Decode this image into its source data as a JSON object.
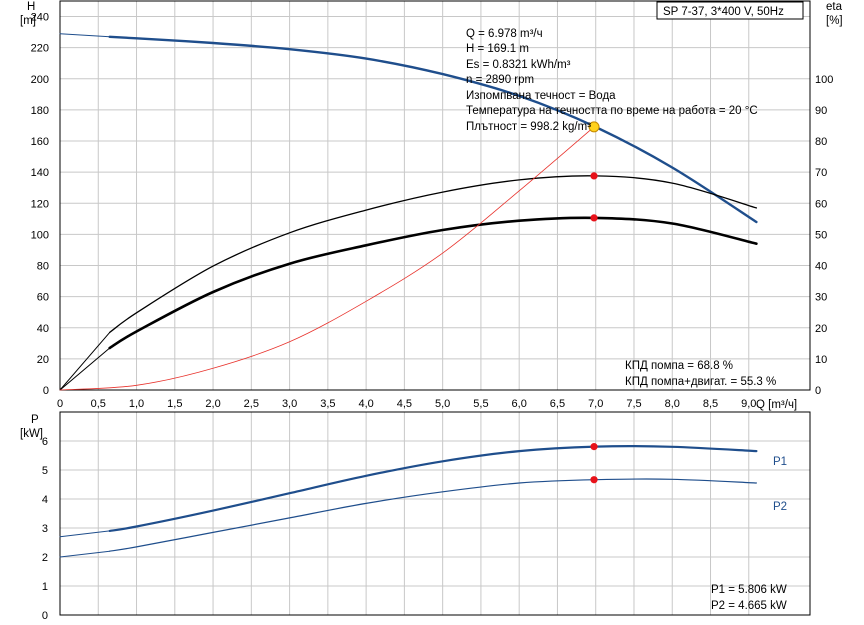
{
  "title": "SP 7-37, 3*400 V, 50Hz",
  "chart_data": [
    {
      "type": "line",
      "name": "head-efficiency",
      "xlabel": "Q [m³/ч]",
      "ylabel": "H",
      "ylabel_unit": "[m]",
      "y2label": "eta",
      "y2label_unit": "[%]",
      "xlim": [
        0,
        9.8
      ],
      "ylim": [
        0,
        250
      ],
      "y2lim": [
        0,
        125
      ],
      "x_ticks": [
        "0",
        "0,5",
        "1,0",
        "1,5",
        "2,0",
        "2,5",
        "3,0",
        "3,5",
        "4,0",
        "4,5",
        "5,0",
        "5,5",
        "6,0",
        "6,5",
        "7,0",
        "7,5",
        "8,0",
        "8,5",
        "9,0"
      ],
      "x_tick_values": [
        0,
        0.5,
        1.0,
        1.5,
        2.0,
        2.5,
        3.0,
        3.5,
        4.0,
        4.5,
        5.0,
        5.5,
        6.0,
        6.5,
        7.0,
        7.5,
        8.0,
        8.5,
        9.0
      ],
      "y_ticks": [
        0,
        20,
        40,
        60,
        80,
        100,
        120,
        140,
        160,
        180,
        200,
        220,
        240
      ],
      "y2_ticks": [
        0,
        10,
        20,
        30,
        40,
        50,
        60,
        70,
        80,
        90,
        100
      ],
      "grid": true,
      "series": [
        {
          "key": "H",
          "axis": "left",
          "color": "#1f4e8c",
          "width": 2.4,
          "x": [
            0.65,
            1.0,
            2.0,
            3.0,
            4.0,
            5.0,
            6.0,
            7.0,
            8.0,
            9.1
          ],
          "y": [
            227,
            226,
            223,
            219,
            213,
            203,
            189,
            169,
            143,
            108
          ]
        },
        {
          "key": "H-extrapolated",
          "axis": "left",
          "color": "#1f4e8c",
          "width": 1,
          "x": [
            0,
            0.65
          ],
          "y": [
            229,
            227
          ]
        },
        {
          "key": "eta-pump",
          "axis": "right",
          "color": "#000000",
          "width": 1.3,
          "x": [
            0.65,
            1.0,
            2.0,
            3.0,
            4.0,
            5.0,
            6.0,
            7.0,
            8.0,
            9.1
          ],
          "y": [
            18.5,
            24.8,
            39.8,
            50.5,
            57.8,
            63.6,
            67.5,
            68.8,
            66.5,
            58.5
          ]
        },
        {
          "key": "eta-pump-extrapolated",
          "axis": "right",
          "color": "#000000",
          "width": 1,
          "x": [
            0,
            0.65
          ],
          "y": [
            0,
            18.5
          ]
        },
        {
          "key": "eta-total",
          "axis": "right",
          "color": "#000000",
          "width": 2.6,
          "x": [
            0.65,
            1.0,
            2.0,
            3.0,
            4.0,
            5.0,
            6.0,
            7.0,
            8.0,
            9.1
          ],
          "y": [
            13.5,
            18.8,
            31.5,
            40.6,
            46.5,
            51.4,
            54.4,
            55.3,
            53.5,
            47
          ]
        },
        {
          "key": "eta-total-extrapolated",
          "axis": "right",
          "color": "#000000",
          "width": 1,
          "x": [
            0,
            0.65
          ],
          "y": [
            0,
            13.5
          ]
        },
        {
          "key": "system-curve",
          "axis": "left",
          "color": "#e8322c",
          "width": 0.8,
          "x": [
            0,
            1.0,
            2.0,
            3.0,
            4.0,
            5.0,
            6.0,
            6.978
          ],
          "y": [
            0,
            3,
            14,
            31,
            57,
            88,
            128,
            169.1
          ]
        }
      ],
      "duty_point": {
        "x": 6.978,
        "y": 169.1,
        "color": "#ffd21e"
      },
      "markers": [
        {
          "x": 6.978,
          "y": 68.8,
          "axis": "right",
          "color": "#e8121a"
        },
        {
          "x": 6.978,
          "y": 55.3,
          "axis": "right",
          "color": "#e8121a"
        }
      ],
      "annotations": [
        "Q = 6.978 m³/ч",
        "H = 169.1 m",
        "Es = 0.8321 kWh/m³",
        "n = 2890 rpm",
        "Изпомпвана течност = Вода",
        "Температура на течността по време на работа = 20 °C",
        "Плътност = 998.2 kg/m³"
      ],
      "efficiency_notes": [
        "КПД помпа = 68.8 %",
        "КПД помпа+двигат. = 55.3 %"
      ]
    },
    {
      "type": "line",
      "name": "power",
      "ylabel": "P",
      "ylabel_unit": "[kW]",
      "xlim": [
        0,
        9.8
      ],
      "ylim": [
        0,
        7
      ],
      "y_ticks": [
        0,
        1,
        2,
        3,
        4,
        5,
        6
      ],
      "grid": true,
      "series": [
        {
          "name": "P1",
          "color": "#1f4e8c",
          "width": 2.2,
          "x": [
            0.65,
            1.0,
            2.0,
            3.0,
            4.0,
            5.0,
            6.0,
            7.0,
            8.0,
            9.1
          ],
          "y": [
            2.9,
            3.05,
            3.6,
            4.2,
            4.8,
            5.3,
            5.65,
            5.806,
            5.8,
            5.65
          ]
        },
        {
          "name": "P1-extrapolated",
          "color": "#1f4e8c",
          "width": 1,
          "x": [
            0,
            0.65
          ],
          "y": [
            2.7,
            2.9
          ]
        },
        {
          "name": "P2",
          "color": "#1f4e8c",
          "width": 1.2,
          "x": [
            0.65,
            1.0,
            2.0,
            3.0,
            4.0,
            5.0,
            6.0,
            7.0,
            8.0,
            9.1
          ],
          "y": [
            2.2,
            2.35,
            2.85,
            3.35,
            3.85,
            4.25,
            4.55,
            4.665,
            4.68,
            4.55
          ]
        },
        {
          "name": "P2-extrapolated",
          "color": "#1f4e8c",
          "width": 1,
          "x": [
            0,
            0.65
          ],
          "y": [
            2.0,
            2.2
          ]
        }
      ],
      "markers": [
        {
          "x": 6.978,
          "y": 5.806,
          "color": "#e8121a"
        },
        {
          "x": 6.978,
          "y": 4.665,
          "color": "#e8121a"
        }
      ],
      "legend": [
        "P1",
        "P2"
      ],
      "annotations": [
        "P1 = 5.806 kW",
        "P2 = 4.665 kW"
      ]
    }
  ]
}
